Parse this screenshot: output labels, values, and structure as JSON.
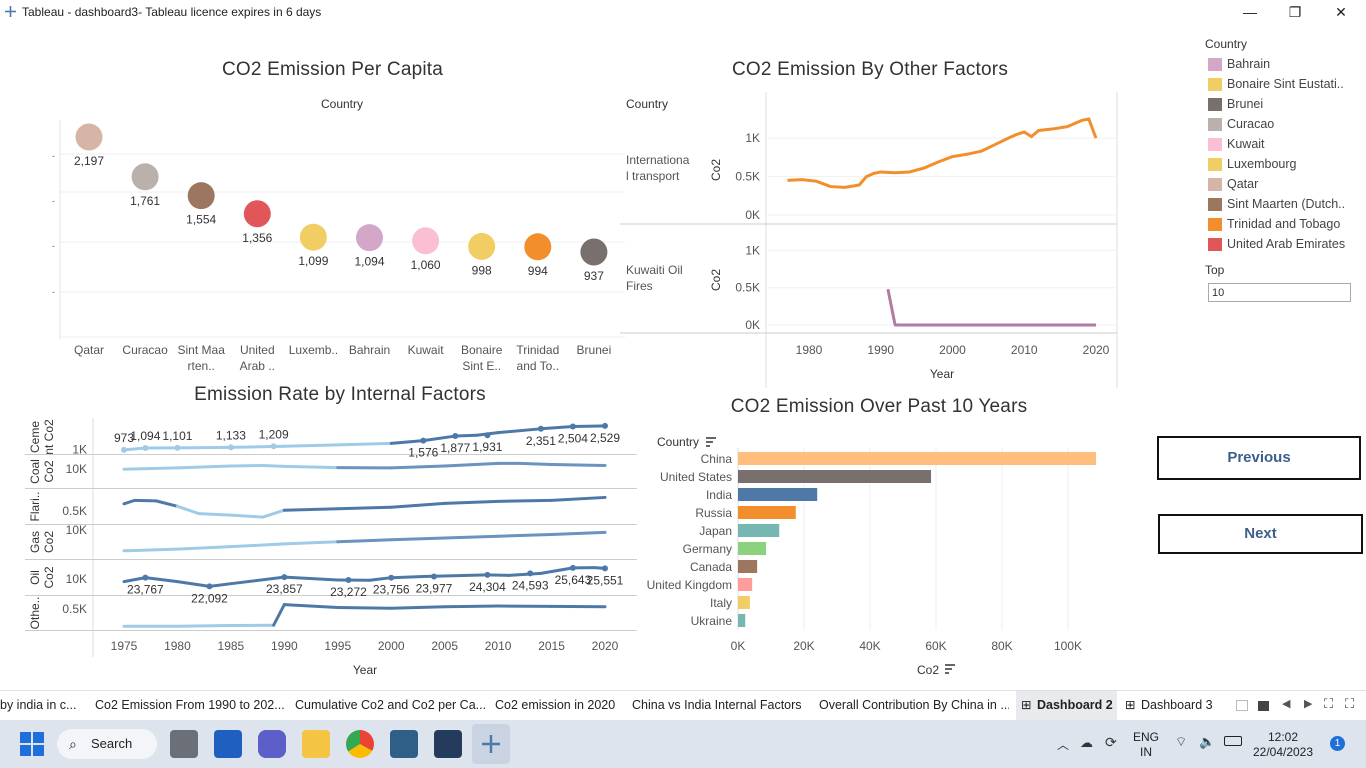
{
  "window": {
    "title": "Tableau - dashboard3- Tableau licence expires in 6 days",
    "minimize": "—",
    "maximize": "❐",
    "close": "✕"
  },
  "charts": {
    "per_capita": {
      "title": "CO2 Emission Per Capita",
      "header": "Country"
    },
    "other_factors": {
      "title": "CO2 Emission By Other Factors",
      "header": "Country",
      "xlabel": "Year",
      "ylabel": "Co2",
      "row1": "Internationa l transport",
      "row2": "Kuwaiti Oil Fires"
    },
    "internal": {
      "title": "Emission Rate by Internal Factors",
      "xlabel": "Year"
    },
    "past10": {
      "title": "CO2 Emission Over Past 10 Years",
      "header": "Country",
      "xlabel": "Co2"
    }
  },
  "chart_data": [
    {
      "type": "scatter",
      "title": "CO2 Emission Per Capita",
      "xlabel": "Country",
      "categories": [
        "Qatar",
        "Curacao",
        "Sint Maarten (Dutch part)",
        "United Arab Emirates",
        "Luxembourg",
        "Bahrain",
        "Kuwait",
        "Bonaire Sint Eustatius and Saba",
        "Trinidad and Tobago",
        "Brunei"
      ],
      "display_labels": [
        [
          "Qatar"
        ],
        [
          "Curacao"
        ],
        [
          "Sint Maa",
          "rten.."
        ],
        [
          "United",
          "Arab .."
        ],
        [
          "Luxemb.."
        ],
        [
          "Bahrain"
        ],
        [
          "Kuwait"
        ],
        [
          "Bonaire",
          "Sint E.."
        ],
        [
          "Trinidad",
          "and To.."
        ],
        [
          "Brunei"
        ]
      ],
      "values": [
        2197,
        1761,
        1554,
        1356,
        1099,
        1094,
        1060,
        998,
        994,
        937
      ],
      "value_labels": [
        "2,197",
        "1,761",
        "1,554",
        "1,356",
        "1,099",
        "1,094",
        "1,060",
        "998",
        "994",
        "937"
      ],
      "colors": [
        "#d7b5a6",
        "#bab0ac",
        "#9d7660",
        "#e15759",
        "#f1ce63",
        "#d4a6c8",
        "#fabfd2",
        "#f1ce63",
        "#f28e2b",
        "#79706e"
      ]
    },
    {
      "type": "line",
      "title": "CO2 Emission By Other Factors",
      "xlabel": "Year",
      "ylabel": "Co2",
      "x_ticks": [
        "1980",
        "1990",
        "2000",
        "2010",
        "2020"
      ],
      "panels": [
        {
          "name": "Internationa l transport",
          "y_ticks": [
            "0K",
            "0.5K",
            "1K"
          ],
          "ylim": [
            0,
            1300
          ],
          "color": "#f28e2b",
          "x": [
            1977,
            1979,
            1981,
            1983,
            1985,
            1987,
            1988,
            1989,
            1990,
            1992,
            1994,
            1996,
            1998,
            2000,
            2002,
            2004,
            2006,
            2008,
            2009,
            2010,
            2011,
            2012,
            2014,
            2016,
            2018,
            2019,
            2020
          ],
          "y": [
            450,
            460,
            440,
            370,
            360,
            390,
            500,
            540,
            560,
            550,
            560,
            610,
            690,
            760,
            790,
            830,
            920,
            1010,
            1050,
            1080,
            1020,
            1100,
            1120,
            1150,
            1230,
            1250,
            1000
          ]
        },
        {
          "name": "Kuwaiti Oil Fires",
          "y_ticks": [
            "0K",
            "0.5K",
            "1K"
          ],
          "ylim": [
            0,
            1300
          ],
          "color": "#b07aa1",
          "x": [
            1991,
            1992,
            2000,
            2010,
            2020
          ],
          "y": [
            480,
            0,
            0,
            0,
            0
          ]
        }
      ]
    },
    {
      "type": "line",
      "title": "Emission Rate by Internal Factors",
      "xlabel": "Year",
      "x_ticks": [
        "1975",
        "1980",
        "1985",
        "1990",
        "1995",
        "2000",
        "2005",
        "2010",
        "2015",
        "2020"
      ],
      "panels": [
        {
          "name": "Ceme nt Co2",
          "y_ticks": [
            "1K"
          ],
          "color": "#a0cbe8",
          "color2": "#4e79a7",
          "x": [
            1975,
            1977,
            1980,
            1985,
            1990,
            1995,
            2000,
            2003,
            2006,
            2008,
            2010,
            2014,
            2017,
            2019,
            2020
          ],
          "y": [
            973,
            1094,
            1101,
            1133,
            1209,
            1300,
            1400,
            1576,
            1877,
            1931,
            2100,
            2351,
            2504,
            2529,
            2540
          ],
          "labels": [
            [
              1975,
              "973"
            ],
            [
              1977,
              "1,094"
            ],
            [
              1980,
              "1,101"
            ],
            [
              1985,
              "1,133"
            ],
            [
              1989,
              "1,209"
            ],
            [
              2003,
              "1,576"
            ],
            [
              2006,
              "1,877"
            ],
            [
              2009,
              "1,931"
            ],
            [
              2014,
              "2,351"
            ],
            [
              2017,
              "2,504"
            ],
            [
              2020,
              "2,529"
            ]
          ]
        },
        {
          "name": "Coal Co2",
          "y_ticks": [
            "10K"
          ],
          "color": "#6b93bf",
          "x": [
            1975,
            1980,
            1985,
            1988,
            1990,
            1995,
            2000,
            2005,
            2010,
            2012,
            2015,
            2020
          ],
          "y": [
            10000,
            10500,
            11200,
            11400,
            11100,
            10600,
            10500,
            11200,
            12200,
            12200,
            11800,
            11400
          ]
        },
        {
          "name": "Flari..",
          "y_ticks": [
            "0.5K"
          ],
          "color": "#4e79a7",
          "color2": "#a0cbe8",
          "x": [
            1975,
            1976,
            1978,
            1980,
            1982,
            1985,
            1988,
            1990,
            1995,
            2000,
            2005,
            2010,
            2015,
            2020
          ],
          "y": [
            0.65,
            0.72,
            0.71,
            0.6,
            0.45,
            0.42,
            0.38,
            0.52,
            0.55,
            0.58,
            0.66,
            0.7,
            0.72,
            0.78
          ]
        },
        {
          "name": "Gas Co2",
          "y_ticks": [
            "10K"
          ],
          "color": "#6b93bf",
          "x": [
            1975,
            1980,
            1985,
            1990,
            1995,
            2000,
            2005,
            2010,
            2015,
            2020
          ],
          "y": [
            4000,
            4500,
            5200,
            6000,
            6600,
            7200,
            7700,
            8200,
            8700,
            9300
          ]
        },
        {
          "name": "Oil Co2",
          "y_ticks": [
            "10K"
          ],
          "color": "#4e79a7",
          "x": [
            1975,
            1977,
            1980,
            1983,
            1985,
            1990,
            1995,
            1998,
            2000,
            2003,
            2009,
            2011,
            2014,
            2017,
            2019,
            2020
          ],
          "y": [
            23000,
            23767,
            23000,
            22092,
            22600,
            23857,
            23300,
            23272,
            23756,
            23977,
            24304,
            24200,
            24593,
            25643,
            25700,
            25551
          ],
          "labels": [
            [
              1977,
              "23,767"
            ],
            [
              1983,
              "22,092"
            ],
            [
              1990,
              "23,857"
            ],
            [
              1996,
              "23,272"
            ],
            [
              2000,
              "23,756"
            ],
            [
              2004,
              "23,977"
            ],
            [
              2009,
              "24,304"
            ],
            [
              2013,
              "24,593"
            ],
            [
              2017,
              "25,643"
            ],
            [
              2020,
              "25,551"
            ]
          ]
        },
        {
          "name": "Othe..",
          "y_ticks": [
            "0.5K"
          ],
          "color": "#4e79a7",
          "color2": "#a0cbe8",
          "x": [
            1975,
            1980,
            1985,
            1989,
            1990,
            1995,
            2000,
            2005,
            2010,
            2015,
            2020
          ],
          "y": [
            0.02,
            0.02,
            0.04,
            0.05,
            0.62,
            0.54,
            0.52,
            0.56,
            0.58,
            0.57,
            0.56
          ]
        }
      ]
    },
    {
      "type": "bar",
      "orientation": "horizontal",
      "title": "CO2 Emission Over Past 10 Years",
      "ylabel": "Country",
      "xlabel": "Co2",
      "x_ticks": [
        "0K",
        "20K",
        "40K",
        "60K",
        "80K",
        "100K"
      ],
      "xlim": [
        0,
        110000
      ],
      "categories": [
        "China",
        "United States",
        "India",
        "Russia",
        "Japan",
        "Germany",
        "Canada",
        "United Kingdom",
        "Italy",
        "Ukraine"
      ],
      "values": [
        108500,
        58500,
        24000,
        17500,
        12500,
        8500,
        5800,
        4300,
        3600,
        2200
      ],
      "colors": [
        "#ffbe7d",
        "#79706e",
        "#4e79a7",
        "#f28e2b",
        "#76b7b2",
        "#8cd17d",
        "#9d7660",
        "#ff9d9a",
        "#f1ce63",
        "#76b7b2"
      ]
    }
  ],
  "legend": {
    "title": "Country",
    "items": [
      {
        "label": "Bahrain",
        "color": "#d4a6c8"
      },
      {
        "label": "Bonaire Sint Eustati..",
        "color": "#f1ce63"
      },
      {
        "label": "Brunei",
        "color": "#79706e"
      },
      {
        "label": "Curacao",
        "color": "#bab0ac"
      },
      {
        "label": "Kuwait",
        "color": "#fabfd2"
      },
      {
        "label": "Luxembourg",
        "color": "#f1ce63"
      },
      {
        "label": "Qatar",
        "color": "#d7b5a6"
      },
      {
        "label": "Sint Maarten (Dutch..",
        "color": "#9d7660"
      },
      {
        "label": "Trinidad and Tobago",
        "color": "#f28e2b"
      },
      {
        "label": "United Arab Emirates",
        "color": "#e15759"
      }
    ]
  },
  "filter": {
    "label": "Top",
    "value": "10"
  },
  "nav": {
    "previous": "Previous",
    "next": "Next"
  },
  "tabs": [
    {
      "label": "by india in c..."
    },
    {
      "label": "Co2 Emission From 1990 to 202..."
    },
    {
      "label": "Cumulative Co2 and Co2 per Ca..."
    },
    {
      "label": "Co2 emission in 2020"
    },
    {
      "label": "China vs India Internal Factors"
    },
    {
      "label": "Overall Contribution By China in ..."
    },
    {
      "label": "Dashboard 2"
    },
    {
      "label": "Dashboard 3"
    }
  ],
  "taskbar": {
    "search": "Search",
    "lang1": "ENG",
    "lang2": "IN",
    "time": "12:02",
    "date": "22/04/2023",
    "badge": "1"
  }
}
